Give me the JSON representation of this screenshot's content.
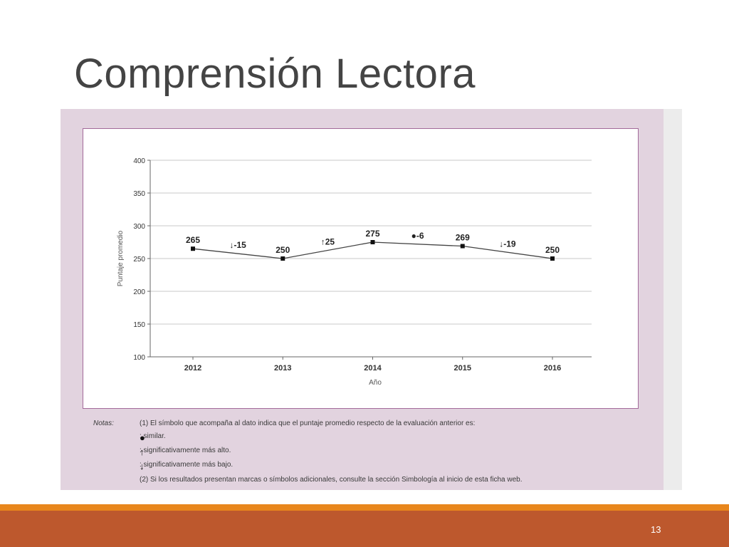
{
  "slide": {
    "title": "Comprensión Lectora",
    "page_number": "13"
  },
  "chart_data": {
    "type": "line",
    "x": [
      "2012",
      "2013",
      "2014",
      "2015",
      "2016"
    ],
    "series": [
      {
        "values": [
          265,
          250,
          275,
          269,
          250
        ]
      }
    ],
    "data_labels": [
      "265",
      "250",
      "275",
      "269",
      "250"
    ],
    "changes": [
      {
        "between": [
          "2012",
          "2013"
        ],
        "symbol": "↓",
        "text": "-15"
      },
      {
        "between": [
          "2013",
          "2014"
        ],
        "symbol": "↑",
        "text": "25"
      },
      {
        "between": [
          "2014",
          "2015"
        ],
        "symbol": "●",
        "text": "-6"
      },
      {
        "between": [
          "2015",
          "2016"
        ],
        "symbol": "↓",
        "text": "-19"
      }
    ],
    "xlabel": "Año",
    "ylabel": "Puntaje promedio",
    "ylim": [
      100,
      400
    ],
    "yticks": [
      "100",
      "150",
      "200",
      "250",
      "300",
      "350",
      "400"
    ],
    "grid": true,
    "line_color": "#444444",
    "grid_color": "#c8c8c8"
  },
  "notes": {
    "label": "Notas:",
    "note_1": "(1) El símbolo que acompaña al dato indica que el puntaje promedio respecto de la evaluación anterior es:",
    "legend": [
      {
        "symbol": "●",
        "text": ": similar."
      },
      {
        "symbol": "↑",
        "text": ": significativamente más alto."
      },
      {
        "symbol": "↓",
        "text": ": significativamente más bajo."
      }
    ],
    "note_2": "(2) Si los resultados presentan marcas o símbolos adicionales, consulte la sección Simbología al inicio de esta ficha web."
  },
  "colors": {
    "panel": "#e2d3df",
    "accent_orange": "#e8861c",
    "footer_rust": "#bd582d"
  }
}
